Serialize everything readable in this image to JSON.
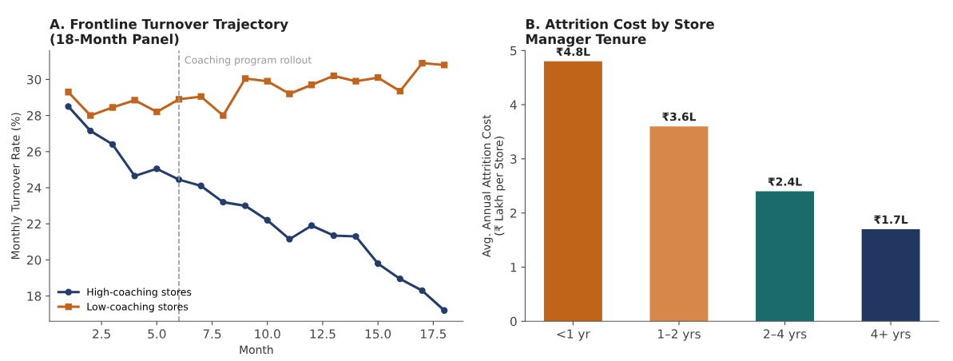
{
  "chart_data": [
    {
      "type": "line",
      "title": "A. Frontline Turnover Trajectory\n(18-Month Panel)",
      "xlabel": "Month",
      "ylabel": "Monthly Turnover Rate (%)",
      "x": [
        1,
        2,
        3,
        4,
        5,
        6,
        7,
        8,
        9,
        10,
        11,
        12,
        13,
        14,
        15,
        16,
        17,
        18
      ],
      "series": [
        {
          "name": "High-coaching stores",
          "color": "#243d6b",
          "marker": "circle",
          "values": [
            28.5,
            27.15,
            26.4,
            24.65,
            25.05,
            24.45,
            24.1,
            23.2,
            23.0,
            22.2,
            21.15,
            21.9,
            21.35,
            21.3,
            19.8,
            18.95,
            18.3,
            17.2
          ]
        },
        {
          "name": "Low-coaching stores",
          "color": "#c0641e",
          "marker": "square",
          "values": [
            29.3,
            28.0,
            28.45,
            28.85,
            28.2,
            28.9,
            29.05,
            28.0,
            30.05,
            29.9,
            29.2,
            29.7,
            30.2,
            29.9,
            30.1,
            29.35,
            30.9,
            30.8
          ]
        }
      ],
      "xlim": [
        0.15,
        18.85
      ],
      "xticks": [
        {
          "value": 2.5,
          "label": "2.5"
        },
        {
          "value": 5,
          "label": "5.0"
        },
        {
          "value": 7.5,
          "label": "7.5"
        },
        {
          "value": 10,
          "label": "10.0"
        },
        {
          "value": 12.5,
          "label": "12.5"
        },
        {
          "value": 15,
          "label": "15.0"
        },
        {
          "value": 17.5,
          "label": "17.5"
        }
      ],
      "ylim": [
        16.6,
        31.6
      ],
      "yticks": [
        18,
        20,
        22,
        24,
        26,
        28,
        30
      ],
      "ref_lines": [
        {
          "axis": "x",
          "value": 6,
          "label": "Coaching program rollout",
          "color": "#999999",
          "line_style": "dashed"
        }
      ],
      "legend": "bottom left",
      "grid": false,
      "line_style": "solid"
    },
    {
      "type": "bar",
      "title": "B. Attrition Cost by Store\nManager Tenure",
      "ylabel": "Avg. Annual Attrition Cost\n(₹ Lakh per Store)",
      "categories": [
        "<1 yr",
        "1–2 yrs",
        "2–4 yrs",
        "4+ yrs"
      ],
      "values": [
        4.8,
        3.6,
        2.4,
        1.7
      ],
      "colors": [
        "#c0641a",
        "#d8874a",
        "#1b6b6b",
        "#213761"
      ],
      "value_labels": [
        "₹4.8L",
        "₹3.6L",
        "₹2.4L",
        "₹1.7L"
      ],
      "ylim": [
        0,
        5
      ],
      "yticks": [
        0,
        1,
        2,
        3,
        4,
        5
      ],
      "grid": false,
      "legend": false
    }
  ]
}
